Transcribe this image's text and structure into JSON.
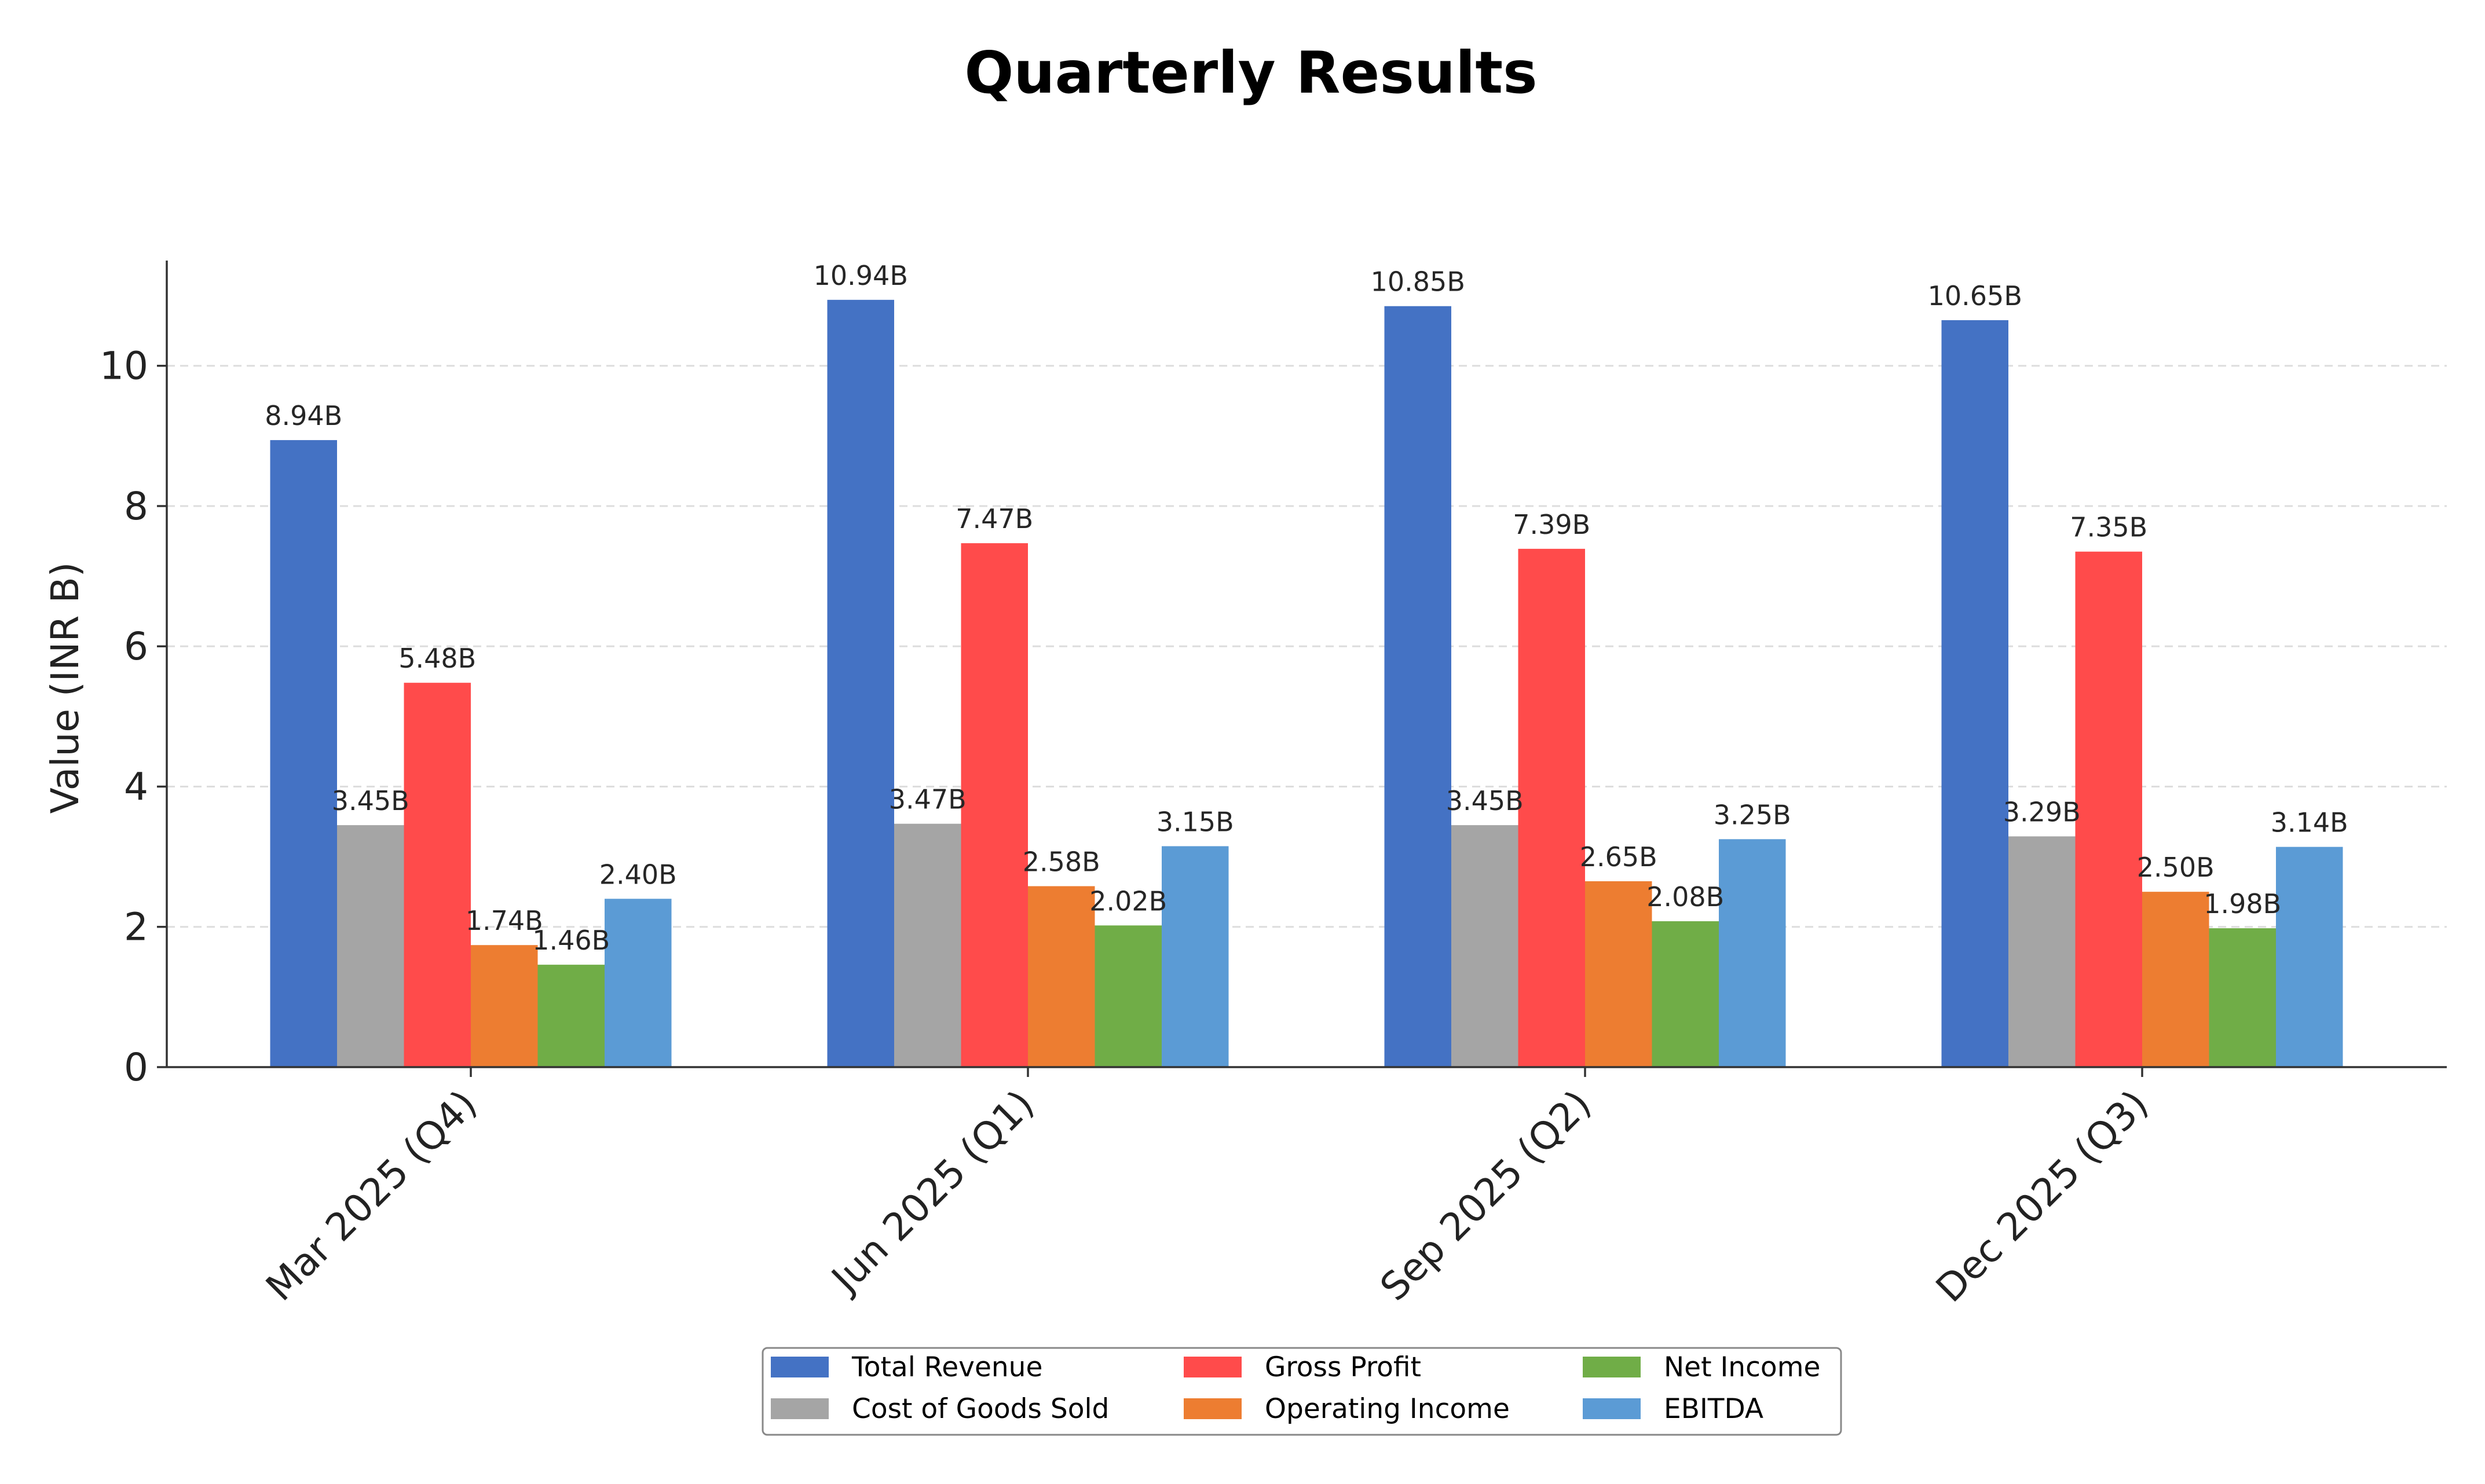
{
  "chart_data": {
    "type": "bar",
    "title": "Quarterly Results",
    "xlabel": "",
    "ylabel": "Value (INR B)",
    "ylim": [
      0,
      11.5
    ],
    "yticks": [
      0,
      2,
      4,
      6,
      8,
      10
    ],
    "grid": "y-dashed",
    "legend_placement": "bottom-center",
    "categories": [
      "Mar 2025 (Q4)",
      "Jun 2025 (Q1)",
      "Sep 2025 (Q2)",
      "Dec 2025 (Q3)"
    ],
    "series": [
      {
        "name": "Total Revenue",
        "color": "#4472c4",
        "values": [
          8.94,
          10.94,
          10.85,
          10.65
        ],
        "labels": [
          "8.94B",
          "10.94B",
          "10.85B",
          "10.65B"
        ]
      },
      {
        "name": "Cost of Goods Sold",
        "color": "#a5a5a5",
        "values": [
          3.45,
          3.47,
          3.45,
          3.29
        ],
        "labels": [
          "3.45B",
          "3.47B",
          "3.45B",
          "3.29B"
        ]
      },
      {
        "name": "Gross Profit",
        "color": "#ff4b4b",
        "values": [
          5.48,
          7.47,
          7.39,
          7.35
        ],
        "labels": [
          "5.48B",
          "7.47B",
          "7.39B",
          "7.35B"
        ]
      },
      {
        "name": "Operating Income",
        "color": "#ed7d31",
        "values": [
          1.74,
          2.58,
          2.65,
          2.5
        ],
        "labels": [
          "1.74B",
          "2.58B",
          "2.65B",
          "2.50B"
        ]
      },
      {
        "name": "Net Income",
        "color": "#70ad47",
        "values": [
          1.46,
          2.02,
          2.08,
          1.98
        ],
        "labels": [
          "1.46B",
          "2.02B",
          "2.08B",
          "1.98B"
        ]
      },
      {
        "name": "EBITDA",
        "color": "#5b9bd5",
        "values": [
          2.4,
          3.15,
          3.25,
          3.14
        ],
        "labels": [
          "2.40B",
          "3.15B",
          "3.25B",
          "3.14B"
        ]
      }
    ]
  }
}
